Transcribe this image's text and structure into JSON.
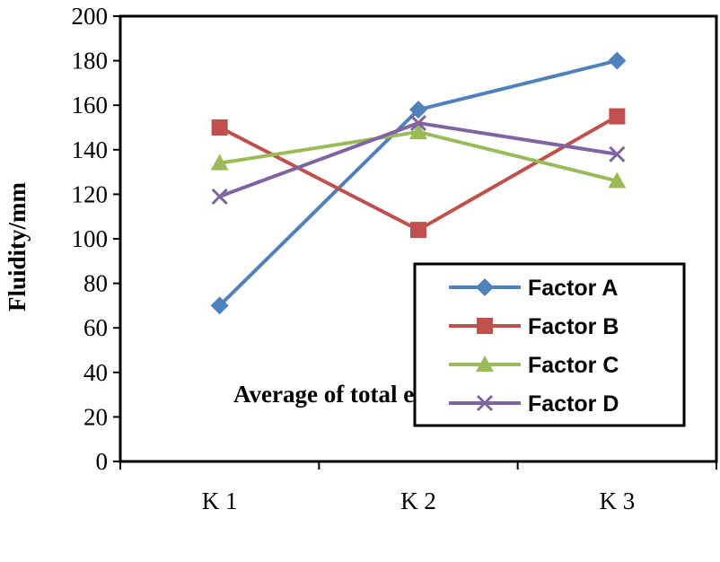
{
  "chart_data": {
    "type": "line",
    "title": "",
    "xlabel": "Average of total experiment indexes",
    "ylabel": "Fluidity/mm",
    "categories": [
      "K1",
      "K2",
      "K3"
    ],
    "category_labels": [
      "K 1",
      "K 2",
      "K 3"
    ],
    "ylim": [
      0,
      200
    ],
    "yticks": [
      0,
      20,
      40,
      60,
      80,
      100,
      120,
      140,
      160,
      180,
      200
    ],
    "grid": false,
    "legend_position": "bottom-right",
    "series": [
      {
        "name": "Factor A",
        "values": [
          70,
          158,
          180
        ],
        "color": "#4f81bd",
        "marker": "diamond"
      },
      {
        "name": "Factor B",
        "values": [
          150,
          104,
          155
        ],
        "color": "#c0504d",
        "marker": "square"
      },
      {
        "name": "Factor C",
        "values": [
          134,
          148,
          126
        ],
        "color": "#9bbb59",
        "marker": "triangle"
      },
      {
        "name": "Factor D",
        "values": [
          119,
          152,
          138
        ],
        "color": "#8064a2",
        "marker": "x"
      }
    ]
  }
}
